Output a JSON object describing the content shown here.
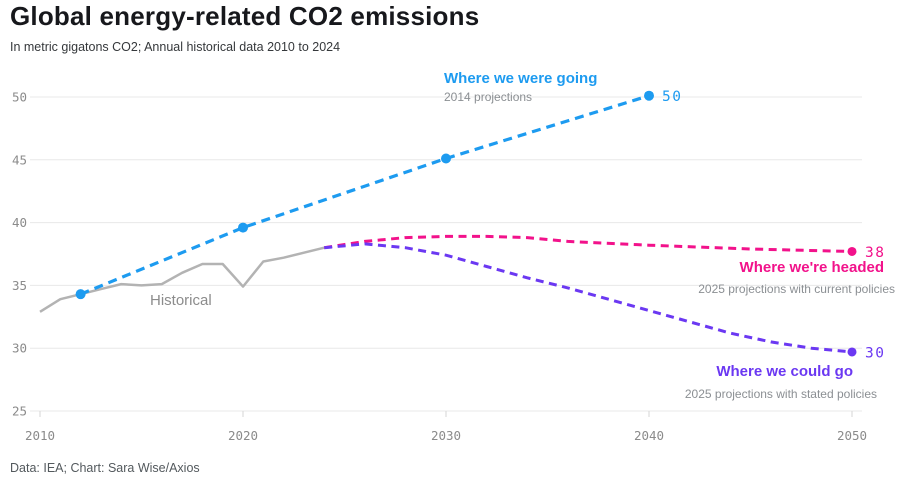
{
  "header": {
    "title": "Global energy-related CO2 emissions",
    "subtitle": "In metric gigatons CO2; Annual historical data 2010 to 2024"
  },
  "footer": {
    "credit": "Data: IEA; Chart: Sara Wise/Axios"
  },
  "colors": {
    "blue": "#1d9bf0",
    "pink": "#f2128b",
    "purple": "#6b38f2",
    "historical_gray": "#b3b3b3",
    "grid": "#e8e8e8"
  },
  "chart_data": {
    "type": "line",
    "title": "Global energy-related CO2 emissions",
    "ylabel": "Metric gigatons CO2",
    "ylim": [
      25,
      52
    ],
    "xlim": [
      2010,
      2050
    ],
    "y_ticks": [
      25,
      30,
      35,
      40,
      45,
      50
    ],
    "x_ticks": [
      2010,
      2020,
      2030,
      2040,
      2050
    ],
    "grid": "horizontal",
    "series": [
      {
        "name": "Historical",
        "color": "#b3b3b3",
        "style": "solid",
        "width": 2.5,
        "x": [
          2010,
          2011,
          2012,
          2013,
          2014,
          2015,
          2016,
          2017,
          2018,
          2019,
          2020,
          2021,
          2022,
          2023,
          2024
        ],
        "values": [
          32.9,
          33.9,
          34.3,
          34.7,
          35.1,
          35.0,
          35.1,
          36.0,
          36.7,
          36.7,
          34.9,
          36.9,
          37.2,
          37.6,
          38.0
        ]
      },
      {
        "name": "Where we were going",
        "annotation": "2014 projections",
        "color": "#1d9bf0",
        "style": "dashed",
        "width": 3.2,
        "dash": "9 6",
        "markers": "all",
        "marker_r": 5,
        "end_label": "50",
        "x": [
          2012,
          2020,
          2030,
          2040
        ],
        "values": [
          34.3,
          39.6,
          45.1,
          50.1
        ]
      },
      {
        "name": "Where we're headed",
        "annotation": "2025 projections with current policies",
        "color": "#f2128b",
        "style": "dashed",
        "width": 3,
        "dash": "8 5.5",
        "markers": "end",
        "marker_r": 4.5,
        "end_label": "38",
        "x": [
          2024,
          2026,
          2028,
          2030,
          2032,
          2034,
          2036,
          2040,
          2045,
          2050
        ],
        "values": [
          38.0,
          38.5,
          38.8,
          38.9,
          38.9,
          38.8,
          38.5,
          38.2,
          37.9,
          37.7
        ]
      },
      {
        "name": "Where we could go",
        "annotation": "2025 projections with stated policies",
        "color": "#6b38f2",
        "style": "dashed",
        "width": 3,
        "dash": "8 5.5",
        "markers": "end",
        "marker_r": 4.5,
        "end_label": "30",
        "x": [
          2024,
          2026,
          2028,
          2030,
          2032,
          2034,
          2036,
          2038,
          2040,
          2042,
          2044,
          2046,
          2048,
          2050
        ],
        "values": [
          38.0,
          38.3,
          38.0,
          37.4,
          36.5,
          35.6,
          34.8,
          33.9,
          33.0,
          32.1,
          31.2,
          30.5,
          30.0,
          29.7
        ]
      }
    ]
  }
}
